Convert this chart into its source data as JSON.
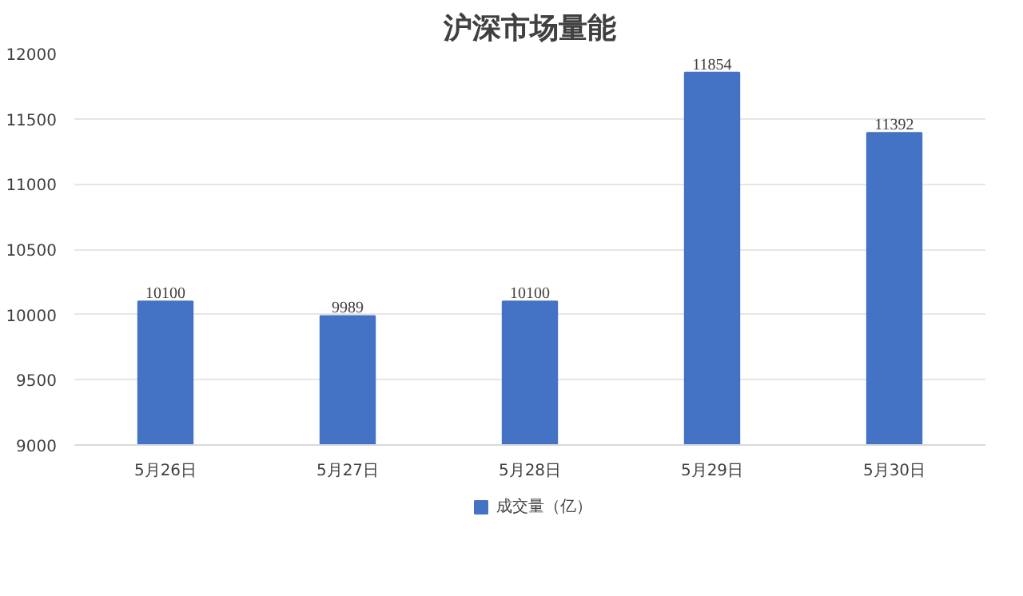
{
  "chart_data": {
    "type": "bar",
    "title": "沪深市场量能",
    "categories": [
      "5月26日",
      "5月27日",
      "5月28日",
      "5月29日",
      "5月30日"
    ],
    "series": [
      {
        "name": "成交量（亿）",
        "color": "#4472c4",
        "values": [
          10100,
          9989,
          10100,
          11854,
          11392
        ]
      }
    ],
    "ylim": [
      9000,
      12000
    ],
    "yticks": [
      9000,
      9500,
      10000,
      10500,
      11000,
      11500,
      12000
    ],
    "grid": "y",
    "legend": "bottom",
    "data_labels": true
  }
}
